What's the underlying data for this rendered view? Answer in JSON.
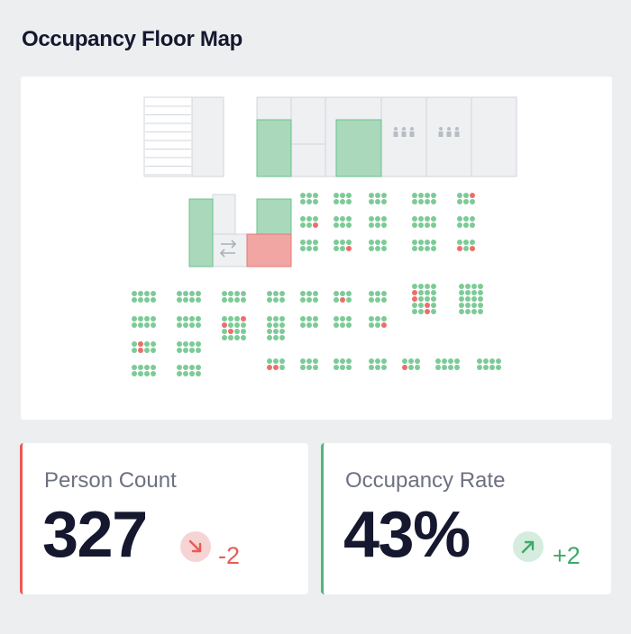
{
  "header": {
    "title": "Occupancy Floor Map"
  },
  "colors": {
    "room_occupied": "#a9d9ba",
    "room_alert": "#f1a6a3",
    "room_empty": "#eef0f2",
    "seat_free": "#7ccb97",
    "seat_taken": "#ea6f6b",
    "kpi_down": "#ea5a54",
    "kpi_up": "#3daa6a"
  },
  "floor_map": {
    "icons": [
      "restroom-icon",
      "restroom-icon",
      "swap-arrows-icon"
    ]
  },
  "kpis": {
    "person_count": {
      "label": "Person Count",
      "value": "327",
      "delta": "-2",
      "trend": "down",
      "trend_icon": "arrow-down-right-icon"
    },
    "occupancy_rate": {
      "label": "Occupancy Rate",
      "value": "43%",
      "delta": "+2",
      "trend": "up",
      "trend_icon": "arrow-up-right-icon"
    }
  }
}
